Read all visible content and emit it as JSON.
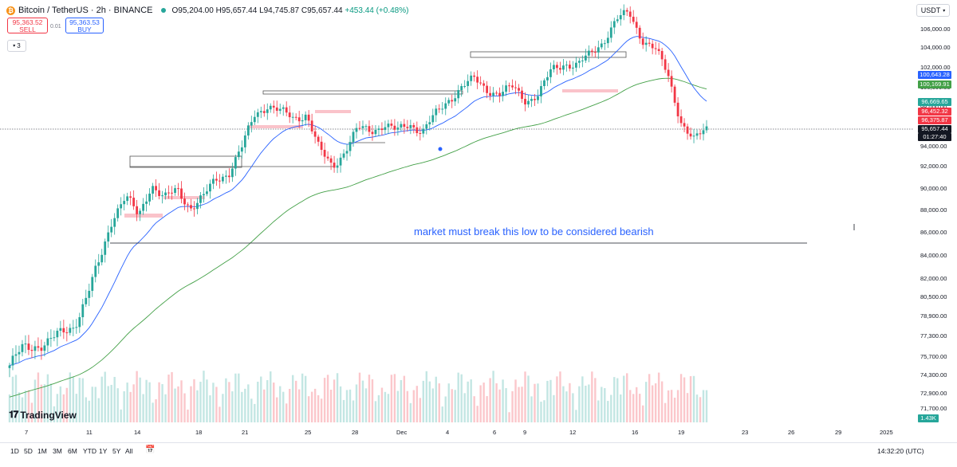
{
  "header": {
    "title": "Bitcoin / TetherUS · 2h · BINANCE",
    "ohlc": "O95,204.00 H95,657.44 L94,745.87 C95,657.44",
    "change": "+453.44 (+0.48%)"
  },
  "trade": {
    "sell_price": "95,363.52",
    "sell_label": "SELL",
    "spread": "0.01",
    "buy_price": "95,363.53",
    "buy_label": "BUY"
  },
  "indicators_toggle": "3",
  "currency": "USDT",
  "annotation": "market must break this low to be considered bearish",
  "logo": "TradingView",
  "price_axis": [
    "106,000.00",
    "104,000.00",
    "102,000.00",
    "100,000.00",
    "98,000.00",
    "96,000.00",
    "94,000.00",
    "92,000.00",
    "90,000.00",
    "88,000.00",
    "86,000.00",
    "84,000.00",
    "82,000.00",
    "80,500.00",
    "78,900.00",
    "77,300.00",
    "75,700.00",
    "74,300.00",
    "72,900.00",
    "71,700.00"
  ],
  "price_tags": [
    {
      "text": "100,643.28",
      "color": "#2962ff"
    },
    {
      "text": "100,169.91",
      "color": "#43a047"
    },
    {
      "text": "96,669.65",
      "color": "#26a69a"
    },
    {
      "text": "96,452.32",
      "color": "#f23645"
    },
    {
      "text": "96,375.87",
      "color": "#f23645"
    },
    {
      "text": "95,657.44",
      "color": "#131722"
    },
    {
      "text": "01:27:40",
      "color": "#131722"
    },
    {
      "text": "1.43K",
      "color": "#26a69a"
    }
  ],
  "time_axis": [
    "7",
    "11",
    "14",
    "18",
    "21",
    "25",
    "28",
    "Dec",
    "4",
    "6",
    "9",
    "12",
    "16",
    "19",
    "23",
    "26",
    "29",
    "2025"
  ],
  "ranges": [
    "1D",
    "5D",
    "1M",
    "3M",
    "6M",
    "YTD",
    "1Y",
    "5Y",
    "All"
  ],
  "clock": "14:32:20 (UTC)",
  "colors": {
    "up": "#26a69a",
    "down": "#f23645",
    "ema_fast": "#2962ff",
    "ema_slow": "#43a047",
    "annotation": "#2962ff"
  },
  "chart_data": {
    "type": "candlestick",
    "ylim": [
      71000,
      108000
    ],
    "x": [
      "Nov 7",
      "Nov 11",
      "Nov 14",
      "Nov 18",
      "Nov 21",
      "Nov 25",
      "Nov 28",
      "Dec 1",
      "Dec 4",
      "Dec 6",
      "Dec 9",
      "Dec 12",
      "Dec 16",
      "Dec 19"
    ],
    "close_path": [
      75000,
      76200,
      76600,
      76800,
      77400,
      78200,
      80500,
      83500,
      87500,
      89200,
      87300,
      90500,
      89000,
      89800,
      88300,
      89100,
      90800,
      91600,
      93800,
      97200,
      98200,
      97400,
      96800,
      97300,
      93500,
      92100,
      93600,
      95700,
      95600,
      96200,
      95400,
      96300,
      95500,
      97100,
      98700,
      100000,
      100700,
      99800,
      99300,
      99900,
      98700,
      99200,
      101700,
      102500,
      102200,
      103300,
      104800,
      106900,
      107600,
      105000,
      103900,
      101200,
      96600,
      94500,
      95657
    ],
    "key_levels": [
      {
        "value": 85000,
        "label": "market must break this low to be considered bearish"
      }
    ]
  }
}
